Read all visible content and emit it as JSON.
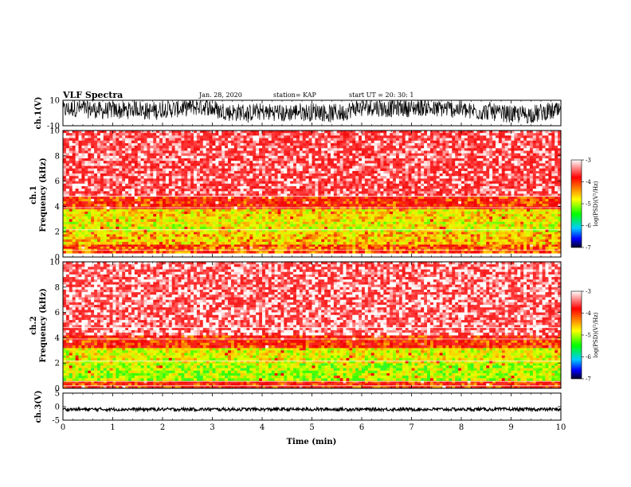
{
  "header": {
    "title": "VLF Spectra",
    "date": "Jan. 28, 2020",
    "station": "station= KAP",
    "start": "start  UT =   20: 30: 1"
  },
  "colorbar": {
    "label": "log(PSD)(V²/Hz)",
    "ticks": [
      "-3",
      "-4",
      "-5",
      "-6",
      "-7"
    ],
    "stops": [
      "#7a0000",
      "#ff0000",
      "#ffff00",
      "#00ff00",
      "#00ffff",
      "#0000ff",
      "#000033"
    ]
  },
  "chart_data": [
    {
      "type": "line",
      "panel": "ch1-waveform",
      "ylabel": "ch.1(V)",
      "ylim": [
        -10,
        10
      ],
      "y_ticks": [
        "10",
        "-10"
      ],
      "xlim": [
        0,
        10
      ],
      "note_values": "dense oscillating voltage signal filling roughly -8 to 10 V across the full time window"
    },
    {
      "type": "heatmap",
      "panel": "ch1-spectrogram",
      "ylabel": "ch.1\nFrequency (kHz)",
      "ylabel_lines": [
        "ch.1",
        "Frequency (kHz)"
      ],
      "ylim": [
        0,
        10
      ],
      "y_ticks": [
        "0",
        "2",
        "4",
        "6",
        "8",
        "10"
      ],
      "xlim": [
        0,
        10
      ],
      "bands": [
        {
          "f_low": 0.3,
          "f_high": 1.0,
          "level": -4.2
        },
        {
          "f_low": 1.0,
          "f_high": 2.0,
          "level": -4.6
        },
        {
          "f_low": 2.0,
          "f_high": 2.8,
          "level": -4.8
        },
        {
          "f_low": 2.8,
          "f_high": 3.8,
          "level": -4.7
        },
        {
          "f_low": 3.8,
          "f_high": 4.8,
          "level": -4.0
        },
        {
          "f_low": 4.8,
          "f_high": 10,
          "level": -3.4
        }
      ]
    },
    {
      "type": "heatmap",
      "panel": "ch2-spectrogram",
      "ylabel_lines": [
        "ch.2",
        "Frequency (kHz)"
      ],
      "ylim": [
        0,
        10
      ],
      "y_ticks": [
        "0",
        "2",
        "4",
        "6",
        "8",
        "10"
      ],
      "xlim": [
        0,
        10
      ],
      "bands": [
        {
          "f_low": 0.0,
          "f_high": 0.6,
          "level": -4.0
        },
        {
          "f_low": 0.6,
          "f_high": 2.0,
          "level": -5.0
        },
        {
          "f_low": 2.0,
          "f_high": 3.2,
          "level": -4.8
        },
        {
          "f_low": 3.2,
          "f_high": 4.2,
          "level": -4.0
        },
        {
          "f_low": 4.2,
          "f_high": 10,
          "level": -3.3
        }
      ]
    },
    {
      "type": "line",
      "panel": "ch3-waveform",
      "ylabel": "ch.3(V)",
      "ylim": [
        -5,
        5
      ],
      "y_ticks": [
        "5",
        "0",
        "-5"
      ],
      "xlim": [
        0,
        10
      ],
      "xlabel": "Time (min)",
      "x_ticks": [
        "0",
        "1",
        "2",
        "3",
        "4",
        "5",
        "6",
        "7",
        "8",
        "9",
        "10"
      ],
      "note_values": "narrow band signal around -1 V"
    }
  ]
}
